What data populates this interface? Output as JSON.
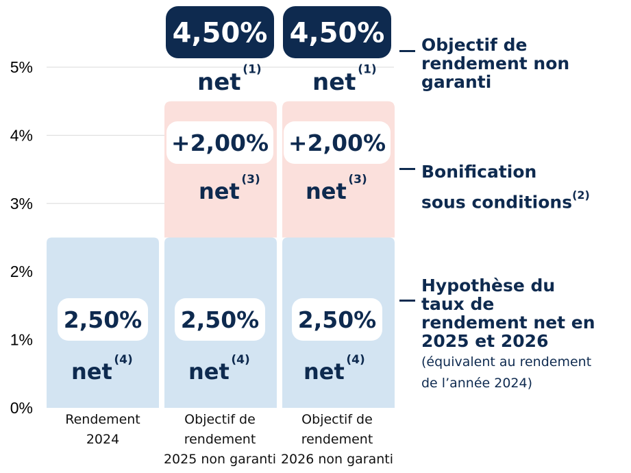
{
  "chart_data": {
    "type": "bar",
    "stacked": true,
    "categories": [
      "Rendement\n2024",
      "Objectif de\nrendement\n2025 non garanti",
      "Objectif de\nrendement\n2026 non garanti"
    ],
    "series": [
      {
        "values": [
          2.5,
          2.5,
          2.5
        ],
        "color": "#d3e4f2"
      },
      {
        "values": [
          0,
          2.0,
          2.0
        ],
        "color": "#fbe0dc"
      }
    ],
    "ylim": [
      0,
      5
    ],
    "yticks": [
      "0%",
      "1%",
      "2%",
      "3%",
      "4%",
      "5%"
    ],
    "grid": true,
    "bar_labels": {
      "base": {
        "value": "2,50%",
        "unit": "net",
        "note": "(4)"
      },
      "bonus": {
        "value": "+2,00%",
        "unit": "net",
        "note": "(3)"
      },
      "total": {
        "value": "4,50%",
        "unit": "net",
        "note": "(1)"
      }
    },
    "legend": [
      {
        "text": "Objectif de\nrendement non\ngaranti"
      },
      {
        "text": "Bonification\nsous conditions",
        "note": "(2)"
      },
      {
        "text": "Hypothèse du\ntaux de\nrendement net en\n2025 et 2026",
        "sub": "(équivalent au rendement\nde l’année 2024)"
      }
    ]
  },
  "colors": {
    "navy": "#0e2a4f",
    "base_fill": "#d3e4f2",
    "bonus_fill": "#fbe0dc",
    "grid": "#d9d9d9",
    "pill": "#ffffff"
  }
}
